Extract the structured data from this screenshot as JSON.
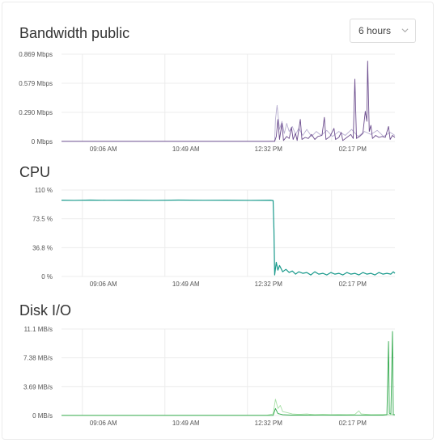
{
  "colors": {
    "bandwidth_private": "#b7aed0",
    "bandwidth_public": "#6a4a8c",
    "cpu": "#1a9a8c",
    "cpu_light": "#9fd5ce",
    "disk_read": "#a7e0a6",
    "disk_write": "#2fa84a"
  },
  "header": {
    "title": "Bandwidth public",
    "range_select": {
      "value": "6 hours",
      "icon": "chevron-down-icon"
    }
  },
  "x_ticks": [
    "09:06 AM",
    "10:49 AM",
    "12:32 PM",
    "02:17 PM"
  ],
  "chart_data": [
    {
      "id": "bandwidth",
      "type": "line",
      "title": "Bandwidth public",
      "y_ticks": [
        "0 Mbps",
        "0.290 Mbps",
        "0.579 Mbps",
        "0.869 Mbps"
      ],
      "ylim": [
        0,
        0.869
      ],
      "x_range_minutes": [
        -26,
        390
      ],
      "series": [
        {
          "color_key": "bandwidth_private",
          "points": [
            [
              -26,
              0.002
            ],
            [
              230,
              0.002
            ],
            [
              240,
              0.003
            ],
            [
              241,
              0.22
            ],
            [
              243,
              0.36
            ],
            [
              246,
              0.12
            ],
            [
              249,
              0.2
            ],
            [
              252,
              0.08
            ],
            [
              255,
              0.18
            ],
            [
              258,
              0.1
            ],
            [
              262,
              0.15
            ],
            [
              266,
              0.07
            ],
            [
              270,
              0.13
            ],
            [
              275,
              0.06
            ],
            [
              280,
              0.12
            ],
            [
              286,
              0.05
            ],
            [
              292,
              0.1
            ],
            [
              298,
              0.06
            ],
            [
              305,
              0.11
            ],
            [
              312,
              0.05
            ],
            [
              320,
              0.1
            ],
            [
              328,
              0.06
            ],
            [
              336,
              0.12
            ],
            [
              344,
              0.05
            ],
            [
              352,
              0.1
            ],
            [
              360,
              0.07
            ],
            [
              368,
              0.11
            ],
            [
              376,
              0.05
            ],
            [
              384,
              0.09
            ],
            [
              390,
              0.06
            ]
          ]
        },
        {
          "color_key": "bandwidth_public",
          "points": [
            [
              -26,
              0.002
            ],
            [
              240,
              0.002
            ],
            [
              242,
              0.05
            ],
            [
              244,
              0.22
            ],
            [
              246,
              0.02
            ],
            [
              249,
              0.18
            ],
            [
              251,
              0.01
            ],
            [
              255,
              0.05
            ],
            [
              258,
              0.03
            ],
            [
              261,
              0.14
            ],
            [
              263,
              0.02
            ],
            [
              266,
              0.08
            ],
            [
              268,
              0.01
            ],
            [
              272,
              0.22
            ],
            [
              274,
              0.02
            ],
            [
              278,
              0.04
            ],
            [
              282,
              0.03
            ],
            [
              286,
              0.07
            ],
            [
              290,
              0.02
            ],
            [
              294,
              0.05
            ],
            [
              299,
              0.06
            ],
            [
              302,
              0.24
            ],
            [
              304,
              0.02
            ],
            [
              309,
              0.05
            ],
            [
              314,
              0.13
            ],
            [
              316,
              0.02
            ],
            [
              320,
              0.04
            ],
            [
              323,
              0.09
            ],
            [
              325,
              0.01
            ],
            [
              330,
              0.04
            ],
            [
              335,
              0.07
            ],
            [
              338,
              0.03
            ],
            [
              340,
              0.62
            ],
            [
              342,
              0.03
            ],
            [
              346,
              0.05
            ],
            [
              350,
              0.08
            ],
            [
              353,
              0.3
            ],
            [
              355,
              0.2
            ],
            [
              356,
              0.8
            ],
            [
              358,
              0.1
            ],
            [
              360,
              0.16
            ],
            [
              362,
              0.03
            ],
            [
              366,
              0.06
            ],
            [
              370,
              0.04
            ],
            [
              374,
              0.05
            ],
            [
              378,
              0.04
            ],
            [
              382,
              0.15
            ],
            [
              384,
              0.02
            ],
            [
              387,
              0.06
            ],
            [
              390,
              0.04
            ]
          ]
        }
      ]
    },
    {
      "id": "cpu",
      "type": "line",
      "title": "CPU",
      "y_ticks": [
        "0 %",
        "36.8 %",
        "73.5 %",
        "110 %"
      ],
      "ylim": [
        0,
        110
      ],
      "x_range_minutes": [
        -26,
        390
      ],
      "series": [
        {
          "color_key": "cpu",
          "points": [
            [
              -26,
              97
            ],
            [
              -10,
              96.8
            ],
            [
              10,
              97.1
            ],
            [
              30,
              96.9
            ],
            [
              60,
              97
            ],
            [
              90,
              96.8
            ],
            [
              120,
              97.1
            ],
            [
              150,
              96.9
            ],
            [
              180,
              97
            ],
            [
              210,
              96.8
            ],
            [
              235,
              97
            ],
            [
              238,
              96.5
            ],
            [
              239,
              60
            ],
            [
              240,
              2
            ],
            [
              242,
              18
            ],
            [
              244,
              8
            ],
            [
              246,
              14
            ],
            [
              250,
              6
            ],
            [
              254,
              9
            ],
            [
              258,
              5
            ],
            [
              262,
              7
            ],
            [
              266,
              3
            ],
            [
              270,
              6
            ],
            [
              275,
              4
            ],
            [
              280,
              5
            ],
            [
              285,
              2
            ],
            [
              290,
              6
            ],
            [
              295,
              3
            ],
            [
              300,
              4
            ],
            [
              305,
              2
            ],
            [
              310,
              5
            ],
            [
              315,
              3
            ],
            [
              320,
              4
            ],
            [
              325,
              2
            ],
            [
              330,
              5
            ],
            [
              335,
              3
            ],
            [
              340,
              4
            ],
            [
              345,
              2
            ],
            [
              350,
              5
            ],
            [
              355,
              3
            ],
            [
              360,
              4
            ],
            [
              365,
              2
            ],
            [
              370,
              5
            ],
            [
              375,
              3
            ],
            [
              380,
              4
            ],
            [
              385,
              3
            ],
            [
              388,
              6
            ],
            [
              390,
              4
            ]
          ]
        }
      ]
    },
    {
      "id": "disk",
      "type": "line",
      "title": "Disk I/O",
      "y_ticks": [
        "0 MB/s",
        "3.69 MB/s",
        "7.38 MB/s",
        "11.1 MB/s"
      ],
      "ylim": [
        0,
        11.1
      ],
      "x_range_minutes": [
        -26,
        390
      ],
      "series": [
        {
          "color_key": "disk_read",
          "points": [
            [
              -26,
              0.02
            ],
            [
              230,
              0.03
            ],
            [
              238,
              0.2
            ],
            [
              241,
              2.1
            ],
            [
              244,
              0.9
            ],
            [
              247,
              1.3
            ],
            [
              250,
              0.5
            ],
            [
              254,
              0.4
            ],
            [
              258,
              0.3
            ],
            [
              262,
              0.2
            ],
            [
              270,
              0.15
            ],
            [
              280,
              0.2
            ],
            [
              290,
              0.1
            ],
            [
              300,
              0.15
            ],
            [
              310,
              0.1
            ],
            [
              320,
              0.12
            ],
            [
              330,
              0.1
            ],
            [
              340,
              0.14
            ],
            [
              345,
              0.6
            ],
            [
              348,
              0.2
            ],
            [
              360,
              0.1
            ],
            [
              375,
              0.12
            ],
            [
              390,
              0.1
            ]
          ]
        },
        {
          "color_key": "disk_write",
          "points": [
            [
              -26,
              0.02
            ],
            [
              238,
              0.02
            ],
            [
              241,
              0.9
            ],
            [
              244,
              0.25
            ],
            [
              250,
              0.1
            ],
            [
              260,
              0.05
            ],
            [
              280,
              0.05
            ],
            [
              300,
              0.04
            ],
            [
              320,
              0.05
            ],
            [
              340,
              0.04
            ],
            [
              360,
              0.05
            ],
            [
              375,
              0.05
            ],
            [
              380,
              0.1
            ],
            [
              382,
              9.5
            ],
            [
              383,
              0.3
            ],
            [
              385,
              0.2
            ],
            [
              387,
              10.8
            ],
            [
              388,
              0.1
            ],
            [
              390,
              0.1
            ]
          ]
        }
      ]
    }
  ]
}
